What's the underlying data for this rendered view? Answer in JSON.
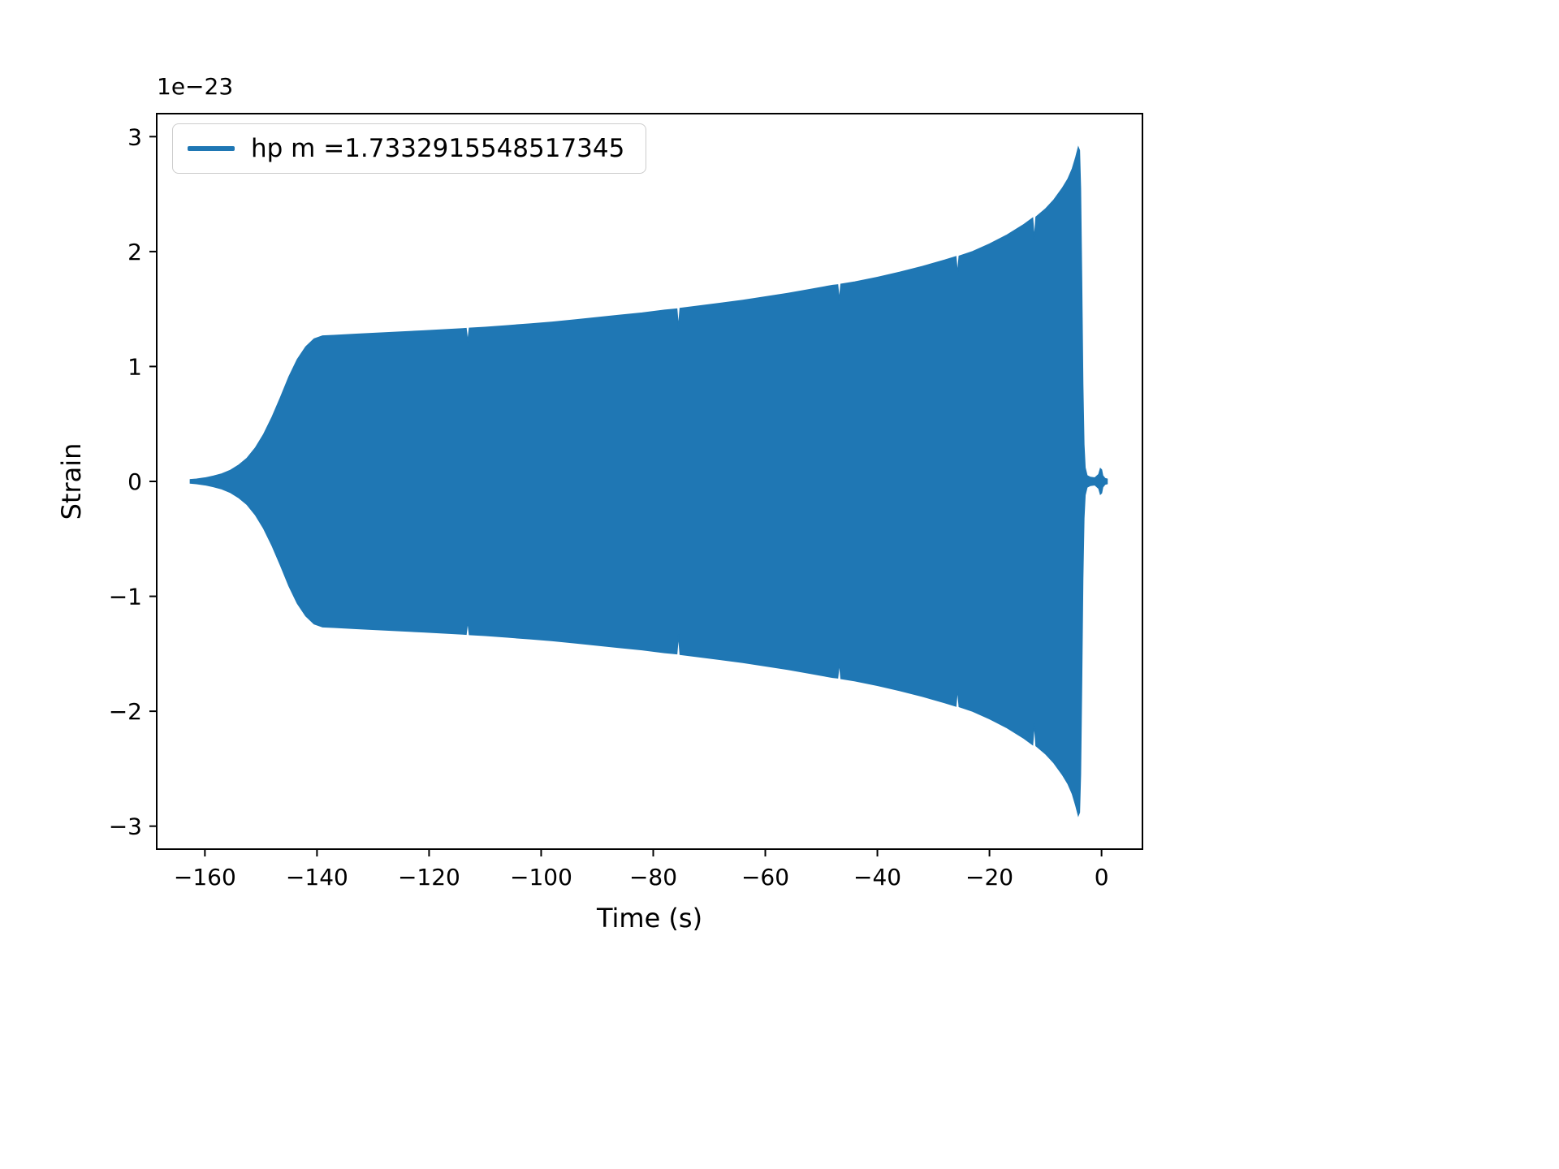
{
  "chart_data": {
    "type": "line",
    "title": "",
    "xlabel": "Time (s)",
    "ylabel": "Strain",
    "y_offset_label": "1e−23",
    "y_unit_scale": "1e-23",
    "grid": false,
    "xlim": [
      -168.6,
      7.3
    ],
    "ylim": [
      -3.2,
      3.2
    ],
    "xticks": [
      {
        "v": -160,
        "label": "−160"
      },
      {
        "v": -140,
        "label": "−140"
      },
      {
        "v": -120,
        "label": "−120"
      },
      {
        "v": -100,
        "label": "−100"
      },
      {
        "v": -80,
        "label": "−80"
      },
      {
        "v": -60,
        "label": "−60"
      },
      {
        "v": -40,
        "label": "−40"
      },
      {
        "v": -20,
        "label": "−20"
      },
      {
        "v": 0,
        "label": "0"
      }
    ],
    "yticks": [
      {
        "v": -3,
        "label": "−3"
      },
      {
        "v": -2,
        "label": "−2"
      },
      {
        "v": -1,
        "label": "−1"
      },
      {
        "v": 0,
        "label": "0"
      },
      {
        "v": 1,
        "label": "1"
      },
      {
        "v": 2,
        "label": "2"
      },
      {
        "v": 3,
        "label": "3"
      }
    ],
    "legend": {
      "label": "hp m =1.7332915548517345",
      "position": "upper left",
      "color": "#1f77b4"
    },
    "series": [
      {
        "name": "hp m =1.7332915548517345",
        "style": "dense-oscillation-filled-envelope",
        "color": "#1f77b4",
        "envelope_units": "1e-23 strain, symmetric about 0",
        "envelope": [
          [
            -162.6,
            0.015
          ],
          [
            -161.5,
            0.02
          ],
          [
            -160,
            0.03
          ],
          [
            -158.5,
            0.045
          ],
          [
            -157,
            0.065
          ],
          [
            -155.5,
            0.095
          ],
          [
            -154,
            0.14
          ],
          [
            -152.5,
            0.2
          ],
          [
            -151,
            0.29
          ],
          [
            -149.5,
            0.41
          ],
          [
            -148,
            0.56
          ],
          [
            -146.5,
            0.73
          ],
          [
            -145,
            0.91
          ],
          [
            -143.5,
            1.06
          ],
          [
            -142,
            1.17
          ],
          [
            -140.5,
            1.24
          ],
          [
            -139,
            1.265
          ],
          [
            -137,
            1.27
          ],
          [
            -133,
            1.28
          ],
          [
            -129,
            1.29
          ],
          [
            -125,
            1.3
          ],
          [
            -121,
            1.31
          ],
          [
            -117,
            1.32
          ],
          [
            -114,
            1.328
          ],
          [
            -113.4,
            1.33
          ],
          [
            -113.1,
            1.21
          ],
          [
            -112.8,
            1.332
          ],
          [
            -110,
            1.34
          ],
          [
            -106,
            1.355
          ],
          [
            -102,
            1.37
          ],
          [
            -98,
            1.385
          ],
          [
            -94,
            1.405
          ],
          [
            -90,
            1.425
          ],
          [
            -86,
            1.445
          ],
          [
            -82,
            1.465
          ],
          [
            -78,
            1.49
          ],
          [
            -75.8,
            1.5
          ],
          [
            -75.5,
            1.33
          ],
          [
            -75.2,
            1.505
          ],
          [
            -72,
            1.525
          ],
          [
            -68,
            1.55
          ],
          [
            -64,
            1.575
          ],
          [
            -60,
            1.605
          ],
          [
            -56,
            1.635
          ],
          [
            -52,
            1.67
          ],
          [
            -48,
            1.705
          ],
          [
            -47.1,
            1.71
          ],
          [
            -46.8,
            1.57
          ],
          [
            -46.5,
            1.715
          ],
          [
            -44,
            1.735
          ],
          [
            -40,
            1.775
          ],
          [
            -36,
            1.82
          ],
          [
            -32,
            1.87
          ],
          [
            -28,
            1.925
          ],
          [
            -26,
            1.955
          ],
          [
            -25.7,
            1.8
          ],
          [
            -25.4,
            1.96
          ],
          [
            -23,
            2.0
          ],
          [
            -20,
            2.065
          ],
          [
            -17,
            2.14
          ],
          [
            -14,
            2.23
          ],
          [
            -12.3,
            2.29
          ],
          [
            -12.0,
            2.1
          ],
          [
            -11.7,
            2.3
          ],
          [
            -10,
            2.37
          ],
          [
            -8.5,
            2.45
          ],
          [
            -7,
            2.55
          ],
          [
            -6,
            2.63
          ],
          [
            -5.2,
            2.72
          ],
          [
            -4.6,
            2.82
          ],
          [
            -4.15,
            2.905
          ],
          [
            -3.95,
            2.88
          ],
          [
            -3.75,
            2.55
          ],
          [
            -3.55,
            1.75
          ],
          [
            -3.35,
            0.85
          ],
          [
            -3.15,
            0.32
          ],
          [
            -2.95,
            0.12
          ],
          [
            -2.6,
            0.05
          ],
          [
            -2.0,
            0.035
          ],
          [
            -1.2,
            0.03
          ],
          [
            -0.5,
            0.06
          ],
          [
            -0.2,
            0.11
          ],
          [
            0.0,
            0.1
          ],
          [
            0.2,
            0.05
          ],
          [
            0.6,
            0.025
          ],
          [
            1.0,
            0.02
          ]
        ]
      }
    ]
  }
}
